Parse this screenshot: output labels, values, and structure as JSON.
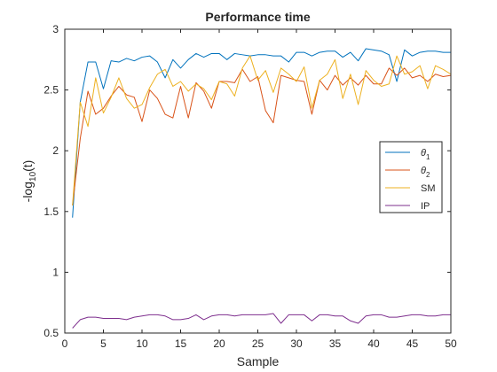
{
  "chart_data": {
    "type": "line",
    "title": "Performance time",
    "xlabel": "Sample",
    "ylabel": {
      "prefix": "-log",
      "sub": "10",
      "suffix": "(t)"
    },
    "xlim": [
      0,
      50
    ],
    "ylim": [
      0.5,
      3
    ],
    "xticks": [
      0,
      5,
      10,
      15,
      20,
      25,
      30,
      35,
      40,
      45,
      50
    ],
    "yticks": [
      0.5,
      1,
      1.5,
      2,
      2.5,
      3
    ],
    "ytick_labels": [
      "0.5",
      "1",
      "1.5",
      "2",
      "2.5",
      "3"
    ],
    "grid": false,
    "legend_position": "right",
    "x": [
      1,
      2,
      3,
      4,
      5,
      6,
      7,
      8,
      9,
      10,
      11,
      12,
      13,
      14,
      15,
      16,
      17,
      18,
      19,
      20,
      21,
      22,
      23,
      24,
      25,
      26,
      27,
      28,
      29,
      30,
      31,
      32,
      33,
      34,
      35,
      36,
      37,
      38,
      39,
      40,
      41,
      42,
      43,
      44,
      45,
      46,
      47,
      48,
      49,
      50
    ],
    "series": [
      {
        "name": "θ1",
        "legend": {
          "base": "θ",
          "sub": "1"
        },
        "color": "#0072BD",
        "values": [
          1.45,
          2.4,
          2.73,
          2.73,
          2.51,
          2.74,
          2.73,
          2.76,
          2.74,
          2.77,
          2.78,
          2.73,
          2.6,
          2.75,
          2.68,
          2.75,
          2.8,
          2.77,
          2.8,
          2.8,
          2.75,
          2.8,
          2.79,
          2.78,
          2.79,
          2.79,
          2.78,
          2.78,
          2.73,
          2.81,
          2.81,
          2.78,
          2.81,
          2.82,
          2.82,
          2.77,
          2.81,
          2.74,
          2.84,
          2.83,
          2.82,
          2.79,
          2.57,
          2.83,
          2.78,
          2.81,
          2.82,
          2.82,
          2.81,
          2.81
        ]
      },
      {
        "name": "θ2",
        "legend": {
          "base": "θ",
          "sub": "2"
        },
        "color": "#D95319",
        "values": [
          1.55,
          2.1,
          2.49,
          2.3,
          2.35,
          2.45,
          2.53,
          2.46,
          2.44,
          2.24,
          2.5,
          2.43,
          2.3,
          2.27,
          2.53,
          2.27,
          2.56,
          2.49,
          2.35,
          2.57,
          2.57,
          2.56,
          2.67,
          2.57,
          2.61,
          2.33,
          2.23,
          2.62,
          2.6,
          2.58,
          2.57,
          2.3,
          2.58,
          2.5,
          2.62,
          2.54,
          2.6,
          2.54,
          2.62,
          2.55,
          2.55,
          2.68,
          2.62,
          2.68,
          2.6,
          2.62,
          2.57,
          2.63,
          2.61,
          2.62
        ]
      },
      {
        "name": "SM",
        "legend": {
          "base": "SM",
          "sub": ""
        },
        "color": "#EDB120",
        "values": [
          1.55,
          2.4,
          2.2,
          2.6,
          2.31,
          2.44,
          2.6,
          2.43,
          2.35,
          2.38,
          2.52,
          2.63,
          2.67,
          2.53,
          2.57,
          2.49,
          2.55,
          2.51,
          2.42,
          2.57,
          2.55,
          2.45,
          2.68,
          2.78,
          2.58,
          2.66,
          2.48,
          2.68,
          2.63,
          2.57,
          2.69,
          2.35,
          2.58,
          2.63,
          2.75,
          2.43,
          2.63,
          2.38,
          2.66,
          2.58,
          2.53,
          2.55,
          2.78,
          2.63,
          2.65,
          2.7,
          2.51,
          2.7,
          2.67,
          2.63
        ]
      },
      {
        "name": "IP",
        "legend": {
          "base": "IP",
          "sub": ""
        },
        "color": "#7E2F8E",
        "values": [
          0.54,
          0.61,
          0.63,
          0.63,
          0.62,
          0.62,
          0.62,
          0.61,
          0.63,
          0.64,
          0.65,
          0.65,
          0.64,
          0.61,
          0.61,
          0.62,
          0.65,
          0.61,
          0.64,
          0.65,
          0.65,
          0.64,
          0.65,
          0.65,
          0.65,
          0.65,
          0.66,
          0.58,
          0.65,
          0.65,
          0.65,
          0.6,
          0.65,
          0.65,
          0.64,
          0.64,
          0.6,
          0.58,
          0.64,
          0.65,
          0.65,
          0.63,
          0.63,
          0.64,
          0.65,
          0.65,
          0.64,
          0.64,
          0.65,
          0.65
        ]
      }
    ]
  }
}
